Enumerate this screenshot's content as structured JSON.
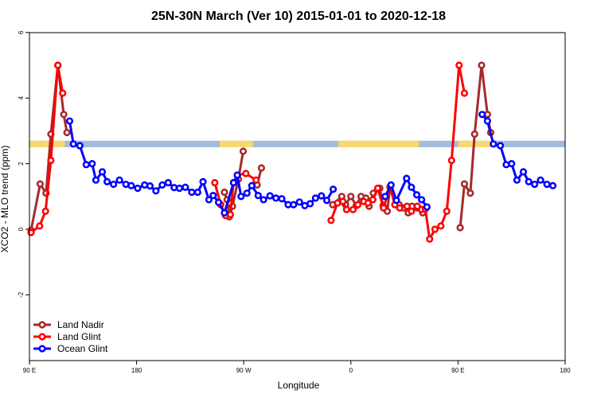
{
  "chart_data": {
    "type": "line",
    "title": "25N-30N March (Ver 10)   2015-01-01 to 2020-12-18",
    "xlabel": "Longitude",
    "ylabel": "XCO2 - MLO trend (ppm)",
    "xlim": [
      0,
      100
    ],
    "ylim": [
      -4,
      6
    ],
    "x_ticks": [
      {
        "value": 0,
        "label": "90 E"
      },
      {
        "value": 20,
        "label": "180"
      },
      {
        "value": 40,
        "label": "90 W"
      },
      {
        "value": 60,
        "label": "0"
      },
      {
        "value": 80,
        "label": "90 E"
      },
      {
        "value": 100,
        "label": "180"
      }
    ],
    "y_ticks": [
      {
        "value": -2,
        "label": "-2"
      },
      {
        "value": 0,
        "label": "0"
      },
      {
        "value": 2,
        "label": "2"
      },
      {
        "value": 4,
        "label": "4"
      },
      {
        "value": 6,
        "label": "6"
      }
    ],
    "land_mask_band": {
      "y_range": [
        2.5,
        2.7
      ],
      "ocean_color": "#a4bcdc",
      "land_color": "#f7d870",
      "land_x_ranges": [
        [
          0,
          6.6
        ],
        [
          35.5,
          41.7
        ],
        [
          57.6,
          72.7
        ],
        [
          80,
          86.6
        ]
      ]
    },
    "legend": "bottom-left",
    "series": [
      {
        "name": "Land Nadir",
        "color": "#a52a2a",
        "segments": [
          [
            [
              0.3,
              -0.03
            ],
            [
              2.0,
              1.38
            ],
            [
              3.1,
              1.1
            ],
            [
              4.0,
              2.9
            ],
            [
              5.3,
              5.0
            ],
            [
              6.4,
              3.5
            ],
            [
              7.0,
              2.95
            ]
          ],
          [
            [
              36.4,
              1.13
            ],
            [
              36.9,
              0.9
            ],
            [
              37.3,
              0.38
            ],
            [
              37.9,
              0.7
            ],
            [
              39.0,
              1.53
            ],
            [
              39.9,
              2.38
            ]
          ],
          [
            [
              42.5,
              1.35
            ],
            [
              43.3,
              1.87
            ]
          ],
          [
            [
              56.6,
              0.75
            ],
            [
              58.3,
              1.0
            ],
            [
              59.0,
              0.75
            ],
            [
              60.0,
              1.0
            ],
            [
              61.0,
              0.72
            ],
            [
              61.9,
              1.0
            ],
            [
              62.8,
              0.95
            ],
            [
              63.4,
              0.7
            ],
            [
              64.2,
              1.1
            ],
            [
              65.4,
              1.25
            ],
            [
              66.0,
              0.72
            ],
            [
              66.8,
              0.55
            ],
            [
              67.3,
              1.28
            ],
            [
              69.0,
              0.75
            ],
            [
              69.8,
              0.65
            ],
            [
              70.7,
              0.5
            ],
            [
              71.4,
              0.7
            ],
            [
              72.4,
              0.65
            ],
            [
              73.4,
              0.5
            ]
          ],
          [
            [
              80.4,
              0.05
            ],
            [
              81.2,
              1.38
            ],
            [
              82.3,
              1.1
            ],
            [
              83.1,
              2.9
            ],
            [
              84.4,
              5.0
            ],
            [
              85.5,
              3.5
            ],
            [
              86.1,
              2.95
            ]
          ]
        ]
      },
      {
        "name": "Land Glint",
        "color": "#ff0000",
        "segments": [
          [
            [
              0.3,
              -0.1
            ],
            [
              1.9,
              0.1
            ],
            [
              3.0,
              0.55
            ],
            [
              4.0,
              2.1
            ],
            [
              5.3,
              5.0
            ],
            [
              6.2,
              4.15
            ]
          ],
          [
            [
              34.6,
              1.42
            ],
            [
              35.7,
              0.75
            ],
            [
              36.6,
              0.42
            ],
            [
              37.5,
              0.45
            ],
            [
              38.1,
              1.42
            ],
            [
              38.8,
              1.65
            ],
            [
              40.4,
              1.7
            ],
            [
              42.3,
              1.5
            ]
          ],
          [
            [
              56.3,
              0.27
            ],
            [
              57.5,
              0.8
            ],
            [
              58.5,
              0.85
            ],
            [
              59.2,
              0.6
            ],
            [
              60.4,
              0.6
            ],
            [
              61.3,
              0.75
            ],
            [
              62.4,
              0.85
            ],
            [
              63.2,
              0.8
            ],
            [
              64.1,
              0.9
            ],
            [
              65.0,
              1.25
            ],
            [
              66.1,
              0.65
            ],
            [
              67.3,
              1.3
            ],
            [
              68.2,
              0.75
            ],
            [
              69.1,
              0.65
            ],
            [
              70.5,
              0.7
            ],
            [
              71.3,
              0.55
            ],
            [
              72.4,
              0.7
            ],
            [
              73.2,
              0.6
            ],
            [
              73.9,
              0.62
            ],
            [
              74.7,
              -0.3
            ],
            [
              75.7,
              0.0
            ],
            [
              76.8,
              0.1
            ],
            [
              77.9,
              0.55
            ],
            [
              78.8,
              2.1
            ],
            [
              80.2,
              5.0
            ],
            [
              81.2,
              4.15
            ]
          ]
        ]
      },
      {
        "name": "Ocean Glint",
        "color": "#0000ff",
        "segments": [
          [
            [
              7.5,
              3.3
            ],
            [
              8.2,
              2.6
            ],
            [
              9.4,
              2.55
            ],
            [
              10.6,
              1.97
            ],
            [
              11.7,
              2.0
            ],
            [
              12.4,
              1.5
            ],
            [
              13.6,
              1.75
            ],
            [
              14.5,
              1.45
            ],
            [
              15.7,
              1.37
            ],
            [
              16.8,
              1.5
            ],
            [
              18.0,
              1.37
            ],
            [
              19.0,
              1.33
            ],
            [
              20.2,
              1.25
            ],
            [
              21.5,
              1.35
            ],
            [
              22.5,
              1.32
            ],
            [
              23.6,
              1.17
            ],
            [
              24.8,
              1.35
            ],
            [
              25.9,
              1.42
            ],
            [
              27.0,
              1.27
            ],
            [
              28.0,
              1.25
            ],
            [
              29.1,
              1.28
            ],
            [
              30.3,
              1.13
            ],
            [
              31.4,
              1.13
            ],
            [
              32.4,
              1.45
            ],
            [
              33.5,
              0.9
            ],
            [
              34.3,
              1.03
            ],
            [
              35.3,
              0.82
            ],
            [
              36.4,
              0.5
            ],
            [
              38.1,
              1.42
            ],
            [
              38.8,
              1.65
            ],
            [
              39.5,
              1.0
            ],
            [
              40.6,
              1.1
            ],
            [
              41.5,
              1.33
            ],
            [
              42.7,
              1.03
            ],
            [
              43.7,
              0.9
            ],
            [
              44.9,
              1.02
            ],
            [
              46.0,
              0.95
            ],
            [
              47.1,
              0.93
            ],
            [
              48.3,
              0.75
            ],
            [
              49.3,
              0.75
            ],
            [
              50.4,
              0.83
            ],
            [
              51.4,
              0.72
            ],
            [
              52.4,
              0.78
            ],
            [
              53.4,
              0.95
            ],
            [
              54.5,
              1.02
            ],
            [
              55.5,
              0.88
            ],
            [
              56.7,
              1.22
            ]
          ],
          [
            [
              66.4,
              1.0
            ],
            [
              67.5,
              1.35
            ],
            [
              68.5,
              0.88
            ],
            [
              70.4,
              1.55
            ],
            [
              71.3,
              1.28
            ],
            [
              72.3,
              1.05
            ],
            [
              73.2,
              0.9
            ],
            [
              74.2,
              0.68
            ]
          ],
          [
            [
              84.5,
              3.5
            ],
            [
              85.5,
              3.3
            ],
            [
              86.6,
              2.6
            ],
            [
              87.9,
              2.55
            ],
            [
              89.0,
              1.97
            ],
            [
              90.0,
              2.0
            ],
            [
              91.0,
              1.5
            ],
            [
              92.2,
              1.75
            ],
            [
              93.2,
              1.45
            ],
            [
              94.3,
              1.37
            ],
            [
              95.4,
              1.5
            ],
            [
              96.6,
              1.37
            ],
            [
              97.7,
              1.33
            ]
          ]
        ]
      }
    ]
  }
}
